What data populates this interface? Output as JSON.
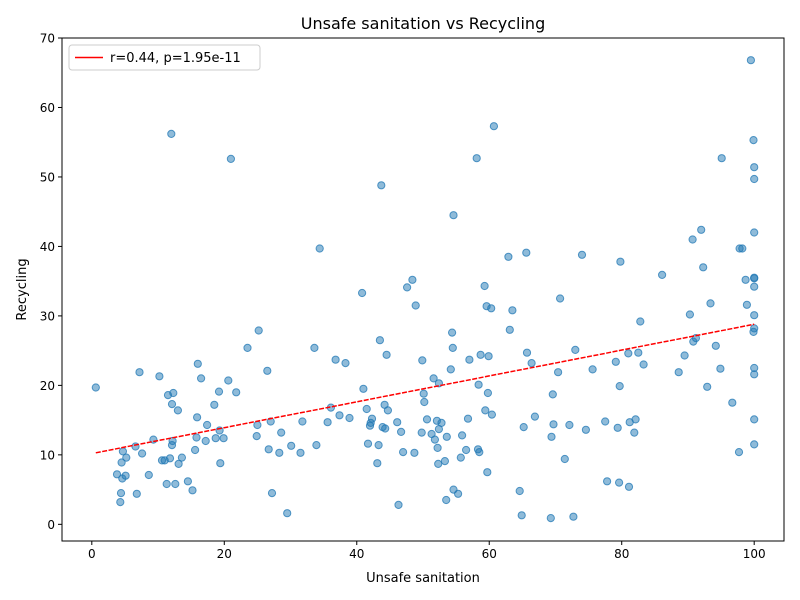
{
  "chart_data": {
    "type": "scatter",
    "title": "Unsafe sanitation vs Recycling",
    "xlabel": "Unsafe sanitation",
    "ylabel": "Recycling",
    "xlim": [
      -4.5,
      104.5
    ],
    "ylim": [
      -2.4,
      70
    ],
    "xticks": [
      0,
      20,
      40,
      60,
      80,
      100
    ],
    "yticks": [
      0,
      10,
      20,
      30,
      40,
      50,
      60,
      70
    ],
    "grid": false,
    "legend_position": "upper-left",
    "series": [
      {
        "role": "points",
        "color": "#1f77b4",
        "points": [
          [
            0.6,
            19.7
          ],
          [
            3.8,
            7.2
          ],
          [
            4.3,
            3.2
          ],
          [
            4.4,
            4.5
          ],
          [
            4.5,
            8.9
          ],
          [
            4.6,
            6.6
          ],
          [
            4.7,
            10.5
          ],
          [
            5.1,
            7.0
          ],
          [
            5.2,
            9.6
          ],
          [
            6.6,
            11.2
          ],
          [
            6.8,
            4.4
          ],
          [
            7.2,
            21.9
          ],
          [
            7.6,
            10.2
          ],
          [
            8.6,
            7.1
          ],
          [
            9.3,
            12.2
          ],
          [
            10.2,
            21.3
          ],
          [
            10.6,
            9.2
          ],
          [
            11.0,
            9.2
          ],
          [
            11.3,
            5.8
          ],
          [
            11.5,
            18.6
          ],
          [
            11.8,
            9.5
          ],
          [
            12.0,
            56.2
          ],
          [
            12.1,
            17.3
          ],
          [
            12.1,
            11.4
          ],
          [
            12.2,
            12.0
          ],
          [
            12.3,
            18.9
          ],
          [
            12.6,
            5.8
          ],
          [
            13.0,
            16.4
          ],
          [
            13.1,
            8.7
          ],
          [
            13.6,
            9.6
          ],
          [
            14.5,
            6.2
          ],
          [
            15.2,
            4.9
          ],
          [
            15.6,
            10.7
          ],
          [
            15.8,
            12.5
          ],
          [
            15.9,
            15.4
          ],
          [
            16.0,
            23.1
          ],
          [
            16.5,
            21.0
          ],
          [
            17.2,
            12.0
          ],
          [
            17.4,
            14.3
          ],
          [
            18.5,
            17.2
          ],
          [
            18.7,
            12.4
          ],
          [
            19.2,
            19.1
          ],
          [
            19.3,
            13.5
          ],
          [
            19.4,
            8.8
          ],
          [
            19.9,
            12.4
          ],
          [
            20.6,
            20.7
          ],
          [
            21.0,
            52.6
          ],
          [
            21.8,
            19.0
          ],
          [
            23.5,
            25.4
          ],
          [
            24.9,
            12.7
          ],
          [
            25.0,
            14.3
          ],
          [
            25.2,
            27.9
          ],
          [
            26.5,
            22.1
          ],
          [
            26.7,
            10.8
          ],
          [
            27.0,
            14.8
          ],
          [
            27.2,
            4.5
          ],
          [
            28.3,
            10.3
          ],
          [
            28.6,
            13.2
          ],
          [
            29.5,
            1.6
          ],
          [
            30.1,
            11.3
          ],
          [
            31.5,
            10.3
          ],
          [
            31.8,
            14.8
          ],
          [
            33.6,
            25.4
          ],
          [
            33.9,
            11.4
          ],
          [
            34.4,
            39.7
          ],
          [
            35.6,
            14.7
          ],
          [
            36.1,
            16.8
          ],
          [
            36.8,
            23.7
          ],
          [
            37.4,
            15.7
          ],
          [
            38.3,
            23.2
          ],
          [
            38.9,
            15.3
          ],
          [
            40.8,
            33.3
          ],
          [
            41.0,
            19.5
          ],
          [
            41.5,
            16.6
          ],
          [
            41.7,
            11.6
          ],
          [
            42.0,
            14.2
          ],
          [
            42.1,
            14.6
          ],
          [
            42.3,
            15.2
          ],
          [
            43.1,
            8.8
          ],
          [
            43.3,
            11.4
          ],
          [
            43.5,
            26.5
          ],
          [
            43.7,
            48.8
          ],
          [
            43.9,
            14.0
          ],
          [
            44.2,
            17.2
          ],
          [
            44.3,
            13.8
          ],
          [
            44.5,
            24.4
          ],
          [
            44.7,
            16.4
          ],
          [
            46.1,
            14.7
          ],
          [
            46.3,
            2.8
          ],
          [
            46.7,
            13.3
          ],
          [
            47.0,
            10.4
          ],
          [
            47.6,
            34.1
          ],
          [
            48.4,
            35.2
          ],
          [
            48.7,
            10.3
          ],
          [
            48.9,
            31.5
          ],
          [
            49.8,
            13.2
          ],
          [
            49.9,
            23.6
          ],
          [
            50.1,
            18.8
          ],
          [
            50.2,
            17.6
          ],
          [
            50.6,
            15.1
          ],
          [
            51.3,
            13.0
          ],
          [
            51.6,
            21.0
          ],
          [
            51.8,
            12.2
          ],
          [
            52.1,
            14.9
          ],
          [
            52.2,
            11.0
          ],
          [
            52.3,
            8.7
          ],
          [
            52.4,
            13.7
          ],
          [
            52.4,
            20.3
          ],
          [
            52.8,
            14.6
          ],
          [
            53.3,
            9.1
          ],
          [
            53.5,
            3.5
          ],
          [
            53.6,
            12.6
          ],
          [
            54.2,
            22.3
          ],
          [
            54.4,
            27.6
          ],
          [
            54.5,
            25.4
          ],
          [
            54.6,
            44.5
          ],
          [
            54.6,
            5.0
          ],
          [
            55.3,
            4.4
          ],
          [
            55.7,
            9.6
          ],
          [
            55.9,
            12.8
          ],
          [
            56.5,
            10.7
          ],
          [
            56.8,
            15.2
          ],
          [
            57.0,
            23.7
          ],
          [
            58.1,
            52.7
          ],
          [
            58.3,
            10.8
          ],
          [
            58.4,
            20.1
          ],
          [
            58.5,
            10.4
          ],
          [
            58.7,
            24.4
          ],
          [
            59.3,
            34.3
          ],
          [
            59.4,
            16.4
          ],
          [
            59.6,
            31.4
          ],
          [
            59.7,
            7.5
          ],
          [
            59.8,
            18.9
          ],
          [
            59.9,
            24.2
          ],
          [
            60.3,
            31.1
          ],
          [
            60.4,
            15.8
          ],
          [
            60.7,
            57.3
          ],
          [
            62.9,
            38.5
          ],
          [
            63.1,
            28.0
          ],
          [
            63.5,
            30.8
          ],
          [
            64.6,
            4.8
          ],
          [
            64.9,
            1.3
          ],
          [
            65.2,
            14.0
          ],
          [
            65.6,
            39.1
          ],
          [
            65.7,
            24.7
          ],
          [
            66.4,
            23.2
          ],
          [
            66.9,
            15.5
          ],
          [
            69.3,
            0.9
          ],
          [
            69.4,
            12.6
          ],
          [
            69.6,
            18.7
          ],
          [
            69.7,
            14.4
          ],
          [
            70.4,
            21.9
          ],
          [
            70.7,
            32.5
          ],
          [
            71.4,
            9.4
          ],
          [
            72.1,
            14.3
          ],
          [
            72.7,
            1.1
          ],
          [
            73.0,
            25.1
          ],
          [
            74.0,
            38.8
          ],
          [
            74.6,
            13.6
          ],
          [
            75.6,
            22.3
          ],
          [
            77.5,
            14.8
          ],
          [
            77.8,
            6.2
          ],
          [
            79.1,
            23.4
          ],
          [
            79.4,
            13.9
          ],
          [
            79.6,
            6.0
          ],
          [
            79.7,
            19.9
          ],
          [
            79.8,
            37.8
          ],
          [
            81.0,
            24.6
          ],
          [
            81.1,
            5.4
          ],
          [
            81.2,
            14.7
          ],
          [
            81.9,
            13.2
          ],
          [
            82.1,
            15.1
          ],
          [
            82.5,
            24.7
          ],
          [
            82.8,
            29.2
          ],
          [
            83.3,
            23.0
          ],
          [
            86.1,
            35.9
          ],
          [
            88.6,
            21.9
          ],
          [
            89.5,
            24.3
          ],
          [
            90.3,
            30.2
          ],
          [
            90.7,
            41.0
          ],
          [
            90.8,
            26.3
          ],
          [
            91.2,
            26.8
          ],
          [
            92.0,
            42.4
          ],
          [
            92.3,
            37.0
          ],
          [
            92.9,
            19.8
          ],
          [
            93.4,
            31.8
          ],
          [
            94.2,
            25.7
          ],
          [
            94.9,
            22.4
          ],
          [
            95.1,
            52.7
          ],
          [
            96.7,
            17.5
          ],
          [
            97.7,
            10.4
          ],
          [
            97.8,
            39.7
          ],
          [
            98.2,
            39.7
          ],
          [
            98.7,
            35.2
          ],
          [
            98.9,
            31.6
          ],
          [
            99.5,
            66.8
          ],
          [
            99.9,
            55.3
          ],
          [
            99.9,
            27.7
          ],
          [
            100.0,
            49.7
          ],
          [
            100.0,
            51.4
          ],
          [
            100.0,
            42.0
          ],
          [
            100.0,
            35.4
          ],
          [
            100.0,
            35.5
          ],
          [
            100.0,
            34.2
          ],
          [
            100.0,
            30.1
          ],
          [
            100.0,
            28.2
          ],
          [
            100.0,
            22.5
          ],
          [
            100.0,
            21.6
          ],
          [
            100.0,
            15.1
          ],
          [
            100.0,
            11.5
          ]
        ]
      },
      {
        "role": "fit-line",
        "name": "r=0.44, p=1.95e-11",
        "color": "#ff0000",
        "x": [
          0.6,
          100.0
        ],
        "y": [
          10.3,
          28.8
        ]
      }
    ]
  }
}
